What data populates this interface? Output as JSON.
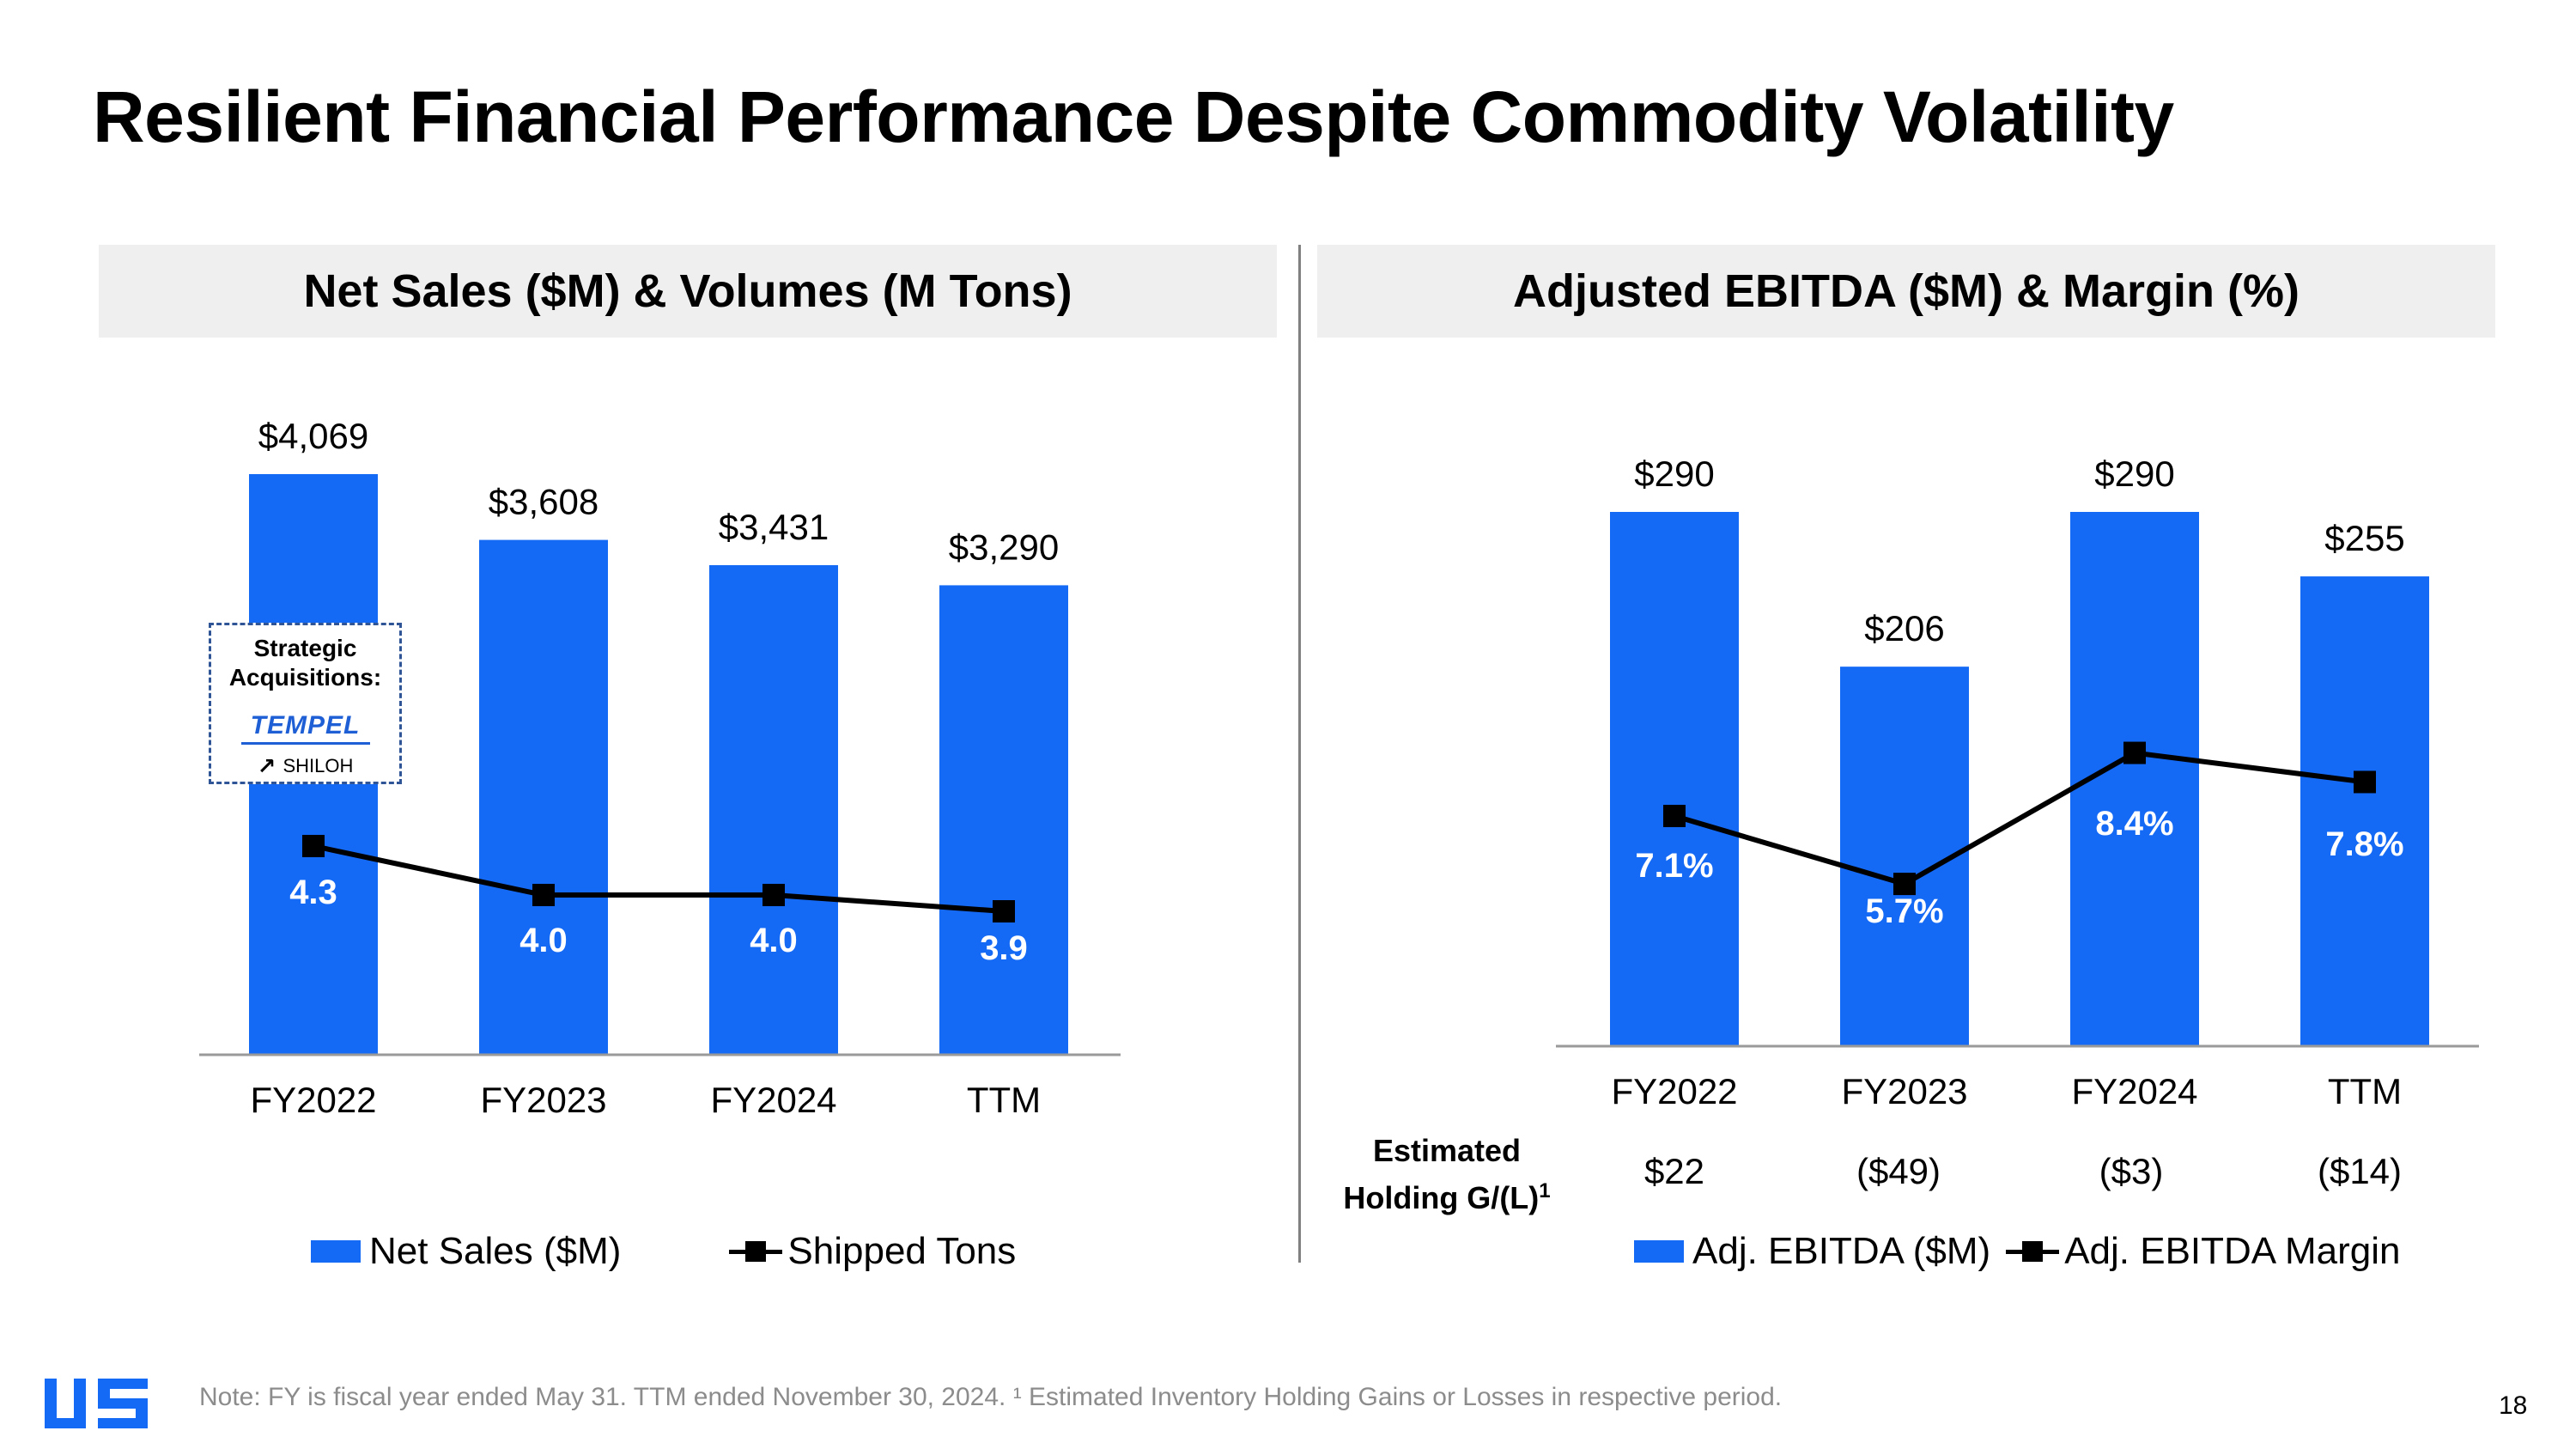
{
  "slide": {
    "title": "Resilient Financial Performance Despite Commodity Volatility",
    "note": "Note: FY is fiscal year ended May 31. TTM ended November 30, 2024. ¹ Estimated Inventory Holding Gains or Losses in respective period.",
    "page_number": "18",
    "colors": {
      "bar": "#1469f5",
      "line": "#000000",
      "header_bg": "#efefef",
      "note": "#8c8c8c"
    },
    "logo_icon": "us-logo-icon"
  },
  "chart_data": [
    {
      "type": "bar",
      "title": "Net Sales ($M) & Volumes (M Tons)",
      "categories": [
        "FY2022",
        "FY2023",
        "FY2024",
        "TTM"
      ],
      "series": [
        {
          "name": "Net Sales ($M)",
          "type": "bar",
          "values": [
            4069,
            3608,
            3431,
            3290
          ],
          "labels": [
            "$4,069",
            "$3,608",
            "$3,431",
            "$3,290"
          ]
        },
        {
          "name": "Shipped Tons",
          "type": "line",
          "values": [
            4.3,
            4.0,
            4.0,
            3.9
          ],
          "labels": [
            "4.3",
            "4.0",
            "4.0",
            "3.9"
          ]
        }
      ],
      "annotation": {
        "title": "Strategic Acquisitions:",
        "logos": [
          "TEMPEL",
          "SHILOH"
        ]
      },
      "legend": {
        "position": "bottom"
      }
    },
    {
      "type": "bar",
      "title": "Adjusted EBITDA ($M) & Margin (%)",
      "categories": [
        "FY2022",
        "FY2023",
        "FY2024",
        "TTM"
      ],
      "series": [
        {
          "name": "Adj. EBITDA ($M)",
          "type": "bar",
          "values": [
            290,
            206,
            290,
            255
          ],
          "labels": [
            "$290",
            "$206",
            "$290",
            "$255"
          ]
        },
        {
          "name": "Adj. EBITDA Margin",
          "type": "line",
          "values": [
            7.1,
            5.7,
            8.4,
            7.8
          ],
          "labels": [
            "7.1%",
            "5.7%",
            "8.4%",
            "7.8%"
          ]
        }
      ],
      "holding": {
        "label_line1": "Estimated",
        "label_line2": "Holding G/(L)",
        "label_sup": "1",
        "values": [
          "$22",
          "($49)",
          "($3)",
          "($14)"
        ]
      },
      "legend": {
        "position": "bottom"
      }
    }
  ]
}
